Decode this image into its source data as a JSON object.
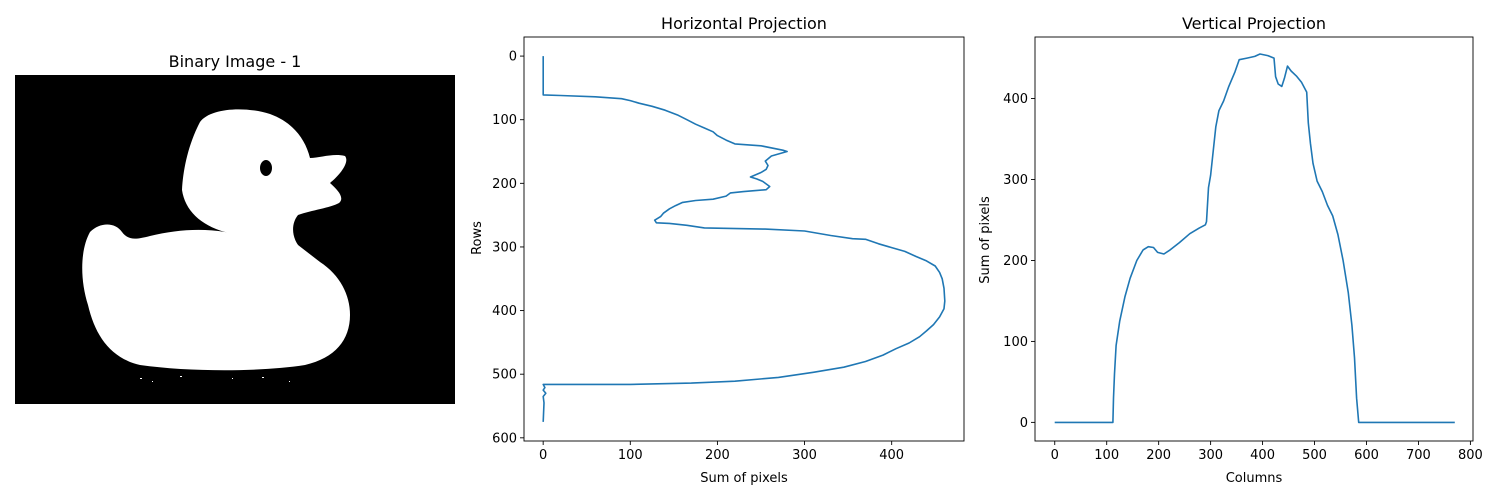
{
  "figure": {
    "panels": [
      {
        "title": "Binary Image - 1"
      },
      {
        "title": "Horizontal Projection",
        "xlabel": "Sum of pixels",
        "ylabel": "Rows"
      },
      {
        "title": "Vertical Projection",
        "xlabel": "Columns",
        "ylabel": "Sum of pixels"
      }
    ],
    "colors": {
      "line": "#1f77b4",
      "image_bg": "#000000",
      "image_fg": "#ffffff"
    }
  },
  "chart_data": [
    {
      "type": "image",
      "title": "Binary Image - 1",
      "content": "binary silhouette of a rubber duck (white on black)"
    },
    {
      "type": "line",
      "title": "Horizontal Projection",
      "xlabel": "Sum of pixels",
      "ylabel": "Rows",
      "xlim": [
        -22,
        483
      ],
      "ylim": [
        605,
        -30
      ],
      "y_inverted": true,
      "xticks": [
        0,
        100,
        200,
        300,
        400
      ],
      "yticks": [
        0,
        100,
        200,
        300,
        400,
        500,
        600
      ],
      "series": [
        {
          "points": [
            [
              0,
              0
            ],
            [
              0,
              61
            ],
            [
              20,
              62
            ],
            [
              60,
              64
            ],
            [
              90,
              67
            ],
            [
              100,
              70
            ],
            [
              110,
              74
            ],
            [
              125,
              79
            ],
            [
              140,
              85
            ],
            [
              155,
              93
            ],
            [
              165,
              100
            ],
            [
              175,
              107
            ],
            [
              185,
              113
            ],
            [
              195,
              119
            ],
            [
              200,
              125
            ],
            [
              210,
              132
            ],
            [
              220,
              138
            ],
            [
              250,
              141
            ],
            [
              275,
              148
            ],
            [
              280,
              150
            ],
            [
              262,
              157
            ],
            [
              255,
              165
            ],
            [
              258,
              172
            ],
            [
              256,
              178
            ],
            [
              250,
              183
            ],
            [
              238,
              190
            ],
            [
              245,
              193
            ],
            [
              252,
              197
            ],
            [
              260,
              205
            ],
            [
              256,
              210
            ],
            [
              230,
              213
            ],
            [
              215,
              215
            ],
            [
              210,
              220
            ],
            [
              195,
              225
            ],
            [
              175,
              227
            ],
            [
              160,
              230
            ],
            [
              152,
              235
            ],
            [
              145,
              240
            ],
            [
              138,
              247
            ],
            [
              135,
              252
            ],
            [
              128,
              258
            ],
            [
              130,
              262
            ],
            [
              145,
              263
            ],
            [
              165,
              266
            ],
            [
              185,
              270
            ],
            [
              255,
              272
            ],
            [
              300,
              275
            ],
            [
              330,
              282
            ],
            [
              355,
              287
            ],
            [
              370,
              288
            ],
            [
              385,
              295
            ],
            [
              400,
              301
            ],
            [
              415,
              307
            ],
            [
              428,
              315
            ],
            [
              440,
              322
            ],
            [
              450,
              330
            ],
            [
              455,
              340
            ],
            [
              458,
              350
            ],
            [
              460,
              365
            ],
            [
              461,
              385
            ],
            [
              460,
              397
            ],
            [
              455,
              410
            ],
            [
              448,
              422
            ],
            [
              440,
              432
            ],
            [
              432,
              441
            ],
            [
              420,
              451
            ],
            [
              405,
              460
            ],
            [
              390,
              470
            ],
            [
              370,
              480
            ],
            [
              345,
              489
            ],
            [
              310,
              497
            ],
            [
              270,
              505
            ],
            [
              220,
              511
            ],
            [
              170,
              514
            ],
            [
              100,
              516
            ],
            [
              0,
              516
            ],
            [
              2,
              521
            ],
            [
              0,
              525
            ],
            [
              3,
              530
            ],
            [
              0,
              535
            ],
            [
              1,
              545
            ],
            [
              0,
              575
            ]
          ]
        }
      ]
    },
    {
      "type": "line",
      "title": "Vertical Projection",
      "xlabel": "Columns",
      "ylabel": "Sum of pixels",
      "xlim": [
        -38,
        805
      ],
      "ylim": [
        -23,
        476
      ],
      "xticks": [
        0,
        100,
        200,
        300,
        400,
        500,
        600,
        700,
        800
      ],
      "yticks": [
        0,
        100,
        200,
        300,
        400
      ],
      "series": [
        {
          "points": [
            [
              0,
              0
            ],
            [
              112,
              0
            ],
            [
              113,
              30
            ],
            [
              115,
              60
            ],
            [
              118,
              95
            ],
            [
              125,
              125
            ],
            [
              135,
              155
            ],
            [
              145,
              178
            ],
            [
              158,
              200
            ],
            [
              170,
              213
            ],
            [
              180,
              217
            ],
            [
              190,
              216
            ],
            [
              198,
              210
            ],
            [
              210,
              208
            ],
            [
              222,
              213
            ],
            [
              240,
              222
            ],
            [
              260,
              233
            ],
            [
              278,
              240
            ],
            [
              290,
              244
            ],
            [
              292,
              248
            ],
            [
              296,
              290
            ],
            [
              300,
              305
            ],
            [
              305,
              335
            ],
            [
              310,
              365
            ],
            [
              316,
              385
            ],
            [
              325,
              397
            ],
            [
              335,
              415
            ],
            [
              347,
              433
            ],
            [
              355,
              448
            ],
            [
              370,
              450
            ],
            [
              385,
              452
            ],
            [
              395,
              455
            ],
            [
              410,
              453
            ],
            [
              422,
              450
            ],
            [
              425,
              427
            ],
            [
              430,
              418
            ],
            [
              437,
              415
            ],
            [
              442,
              425
            ],
            [
              448,
              440
            ],
            [
              455,
              434
            ],
            [
              465,
              428
            ],
            [
              475,
              420
            ],
            [
              485,
              408
            ],
            [
              488,
              370
            ],
            [
              492,
              345
            ],
            [
              497,
              320
            ],
            [
              505,
              298
            ],
            [
              515,
              285
            ],
            [
              525,
              268
            ],
            [
              535,
              255
            ],
            [
              545,
              232
            ],
            [
              555,
              200
            ],
            [
              565,
              160
            ],
            [
              572,
              120
            ],
            [
              577,
              80
            ],
            [
              581,
              30
            ],
            [
              585,
              0
            ],
            [
              770,
              0
            ]
          ]
        }
      ]
    }
  ]
}
